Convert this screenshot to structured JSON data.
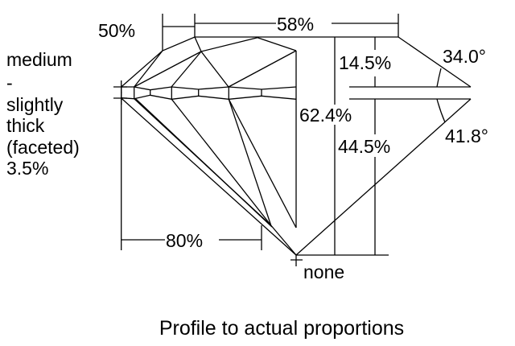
{
  "labels": {
    "table_width": "58%",
    "star_length": "50%",
    "crown_height": "14.5%",
    "crown_angle": "34.0°",
    "total_depth": "62.4%",
    "pavilion_depth": "44.5%",
    "pavilion_angle": "41.8°",
    "lower_half_length": "80%",
    "culet": "none",
    "girdle": [
      "medium",
      "-",
      "slightly",
      "thick",
      "(faceted)",
      "3.5%"
    ]
  },
  "caption": "Profile to actual proportions"
}
